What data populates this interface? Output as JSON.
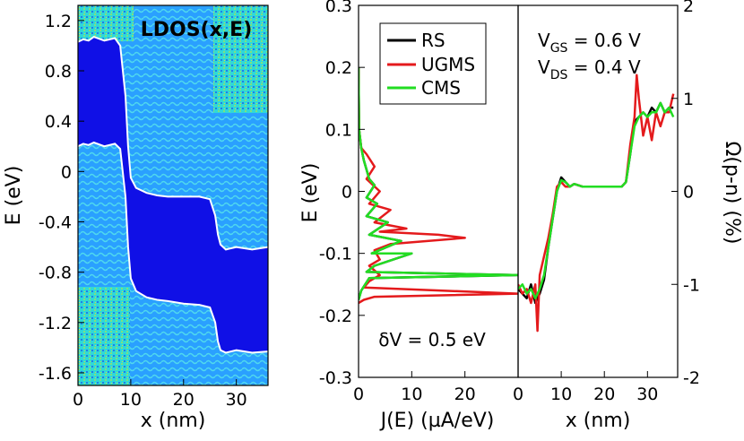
{
  "chart_data": [
    {
      "type": "heatmap",
      "title": "LDOS(x,E)",
      "xlabel": "x (nm)",
      "ylabel": "E (eV)",
      "xlim": [
        0,
        36
      ],
      "ylim": [
        -1.7,
        1.32
      ],
      "xticks": [
        0,
        10,
        20,
        30
      ],
      "yticks": [
        -1.6,
        -1.2,
        -0.8,
        -0.4,
        0,
        0.4,
        0.8,
        1.2
      ],
      "xtick_labels": [
        "0",
        "10",
        "20",
        "30"
      ],
      "ytick_labels": [
        "-1.6",
        "-1.2",
        "-0.8",
        "-0.4",
        "0",
        "0.4",
        "0.8",
        "1.2"
      ],
      "series": [
        {
          "name": "conduction band edge",
          "x": [
            0,
            1,
            2,
            3,
            5,
            7,
            8,
            9,
            9.5,
            10,
            11,
            13,
            15,
            17,
            20,
            23,
            25,
            26,
            26.5,
            27,
            28,
            30,
            33,
            36
          ],
          "y": [
            1.03,
            1.05,
            1.04,
            1.07,
            1.04,
            1.06,
            1.0,
            0.6,
            0.2,
            -0.05,
            -0.13,
            -0.17,
            -0.19,
            -0.2,
            -0.2,
            -0.2,
            -0.22,
            -0.35,
            -0.5,
            -0.58,
            -0.62,
            -0.6,
            -0.62,
            -0.6
          ]
        },
        {
          "name": "valence band edge",
          "x": [
            0,
            1,
            2,
            3,
            5,
            7,
            8,
            9,
            9.5,
            10,
            11,
            13,
            15,
            17,
            20,
            23,
            25,
            26,
            26.5,
            27,
            28,
            30,
            33,
            36
          ],
          "y": [
            0.2,
            0.22,
            0.21,
            0.23,
            0.2,
            0.22,
            0.18,
            -0.2,
            -0.6,
            -0.85,
            -0.95,
            -1.0,
            -1.02,
            -1.03,
            -1.05,
            -1.06,
            -1.08,
            -1.2,
            -1.35,
            -1.42,
            -1.44,
            -1.42,
            -1.44,
            -1.43
          ]
        }
      ]
    },
    {
      "type": "line",
      "xlabel": "J(E) (µA/eV)",
      "ylabel": "E (eV)",
      "xlim": [
        0,
        30
      ],
      "ylim": [
        -0.3,
        0.3
      ],
      "xticks": [
        0,
        10,
        20
      ],
      "yticks": [
        -0.3,
        -0.2,
        -0.1,
        0,
        0.1,
        0.2,
        0.3
      ],
      "xtick_labels": [
        "0",
        "10",
        "20"
      ],
      "ytick_labels": [
        "-0.3",
        "-0.2",
        "-0.1",
        "0",
        "0.1",
        "0.2",
        "0.3"
      ],
      "annotation": "δV = 0.5 eV",
      "legend": [
        "RS",
        "UGMS",
        "CMS"
      ],
      "series": [
        {
          "name": "RS",
          "color": "#000000",
          "J": [
            0,
            0.1,
            0.5,
            1,
            2,
            3,
            1.5,
            3.5,
            1.5,
            5.5,
            2,
            8,
            2.5,
            10,
            3,
            1.5,
            30,
            2,
            0.5,
            0
          ],
          "E": [
            0.2,
            0.1,
            0.07,
            0.05,
            0.02,
            0.01,
            -0.01,
            -0.02,
            -0.04,
            -0.05,
            -0.07,
            -0.08,
            -0.1,
            -0.1,
            -0.12,
            -0.13,
            -0.135,
            -0.14,
            -0.16,
            -0.175
          ]
        },
        {
          "name": "UGMS",
          "color": "#e41a1c",
          "J": [
            0,
            0.1,
            0.5,
            1.5,
            3,
            1.5,
            4,
            2,
            6,
            3,
            9,
            4,
            15,
            20,
            6,
            3,
            4,
            2,
            4,
            2,
            1,
            30,
            3,
            1,
            0
          ],
          "E": [
            0.2,
            0.1,
            0.07,
            0.06,
            0.04,
            0.02,
            0.0,
            -0.02,
            -0.03,
            -0.05,
            -0.06,
            -0.065,
            -0.07,
            -0.075,
            -0.085,
            -0.095,
            -0.11,
            -0.12,
            -0.135,
            -0.145,
            -0.155,
            -0.165,
            -0.17,
            -0.175,
            -0.18
          ]
        },
        {
          "name": "CMS",
          "color": "#22dd22",
          "J": [
            0,
            0.1,
            0.5,
            1,
            2,
            3,
            1.5,
            3.5,
            1.5,
            5.5,
            2,
            8,
            2.5,
            10,
            3,
            1.5,
            30,
            2,
            0.5,
            0
          ],
          "E": [
            0.2,
            0.1,
            0.07,
            0.05,
            0.02,
            0.01,
            -0.01,
            -0.02,
            -0.04,
            -0.05,
            -0.07,
            -0.08,
            -0.1,
            -0.1,
            -0.12,
            -0.13,
            -0.135,
            -0.14,
            -0.16,
            -0.175
          ]
        }
      ]
    },
    {
      "type": "line",
      "xlabel": "x (nm)",
      "ylabel": "Ω(p-n) (%)",
      "xlim": [
        0,
        37
      ],
      "ylim": [
        -2,
        2
      ],
      "xticks": [
        0,
        10,
        20,
        30
      ],
      "yticks": [
        -2,
        -1,
        0,
        1,
        2
      ],
      "xtick_labels": [
        "0",
        "10",
        "20",
        "30"
      ],
      "ytick_labels": [
        "-2",
        "-1",
        "0",
        "1",
        "2"
      ],
      "annotations": [
        "VGS = 0.6 V",
        "VDS = 0.4 V"
      ],
      "series": [
        {
          "name": "RS",
          "color": "#000000",
          "x": [
            0,
            1,
            2,
            3,
            4,
            5,
            6,
            7,
            8,
            9,
            10,
            11,
            12,
            13,
            15,
            18,
            21,
            24,
            25,
            26,
            27,
            28,
            29,
            30,
            31,
            32,
            33,
            34,
            35,
            36
          ],
          "y": [
            -1.05,
            -1.1,
            -1.15,
            -1.0,
            -1.2,
            -1.1,
            -0.95,
            -0.6,
            -0.3,
            0.0,
            0.15,
            0.1,
            0.05,
            0.08,
            0.05,
            0.05,
            0.05,
            0.05,
            0.1,
            0.4,
            0.75,
            0.8,
            0.85,
            0.8,
            0.9,
            0.85,
            0.95,
            0.85,
            0.9,
            0.9
          ]
        },
        {
          "name": "UGMS",
          "color": "#e41a1c",
          "x": [
            0,
            1,
            2,
            3,
            4,
            4.5,
            5,
            6,
            7,
            8,
            9,
            10,
            11,
            12,
            13,
            15,
            18,
            21,
            24,
            25,
            26,
            27,
            27.5,
            28,
            29,
            30,
            31,
            32,
            33,
            34,
            35,
            36
          ],
          "y": [
            -1.0,
            -1.1,
            -1.05,
            -1.2,
            -1.0,
            -1.5,
            -0.9,
            -0.7,
            -0.5,
            -0.25,
            0.05,
            0.1,
            0.05,
            0.05,
            0.08,
            0.05,
            0.05,
            0.05,
            0.05,
            0.1,
            0.5,
            0.8,
            1.25,
            1.0,
            0.6,
            0.8,
            0.55,
            0.85,
            0.7,
            0.85,
            0.85,
            1.05
          ]
        },
        {
          "name": "CMS",
          "color": "#22dd22",
          "x": [
            0,
            1,
            2,
            3,
            4,
            5,
            6,
            7,
            8,
            9,
            10,
            11,
            12,
            13,
            15,
            18,
            21,
            24,
            25,
            26,
            27,
            28,
            29,
            30,
            31,
            32,
            33,
            34,
            35,
            36
          ],
          "y": [
            -1.05,
            -1.0,
            -1.1,
            -1.05,
            -1.15,
            -1.05,
            -0.9,
            -0.6,
            -0.3,
            0.0,
            0.12,
            0.1,
            0.05,
            0.08,
            0.05,
            0.05,
            0.05,
            0.05,
            0.1,
            0.4,
            0.7,
            0.8,
            0.85,
            0.8,
            0.85,
            0.85,
            0.95,
            0.85,
            0.9,
            0.8
          ]
        }
      ]
    }
  ],
  "colors": {
    "map_blue": "#1010e6",
    "map_cyan": "#33e0e0",
    "band_edge": "#ffffff"
  }
}
